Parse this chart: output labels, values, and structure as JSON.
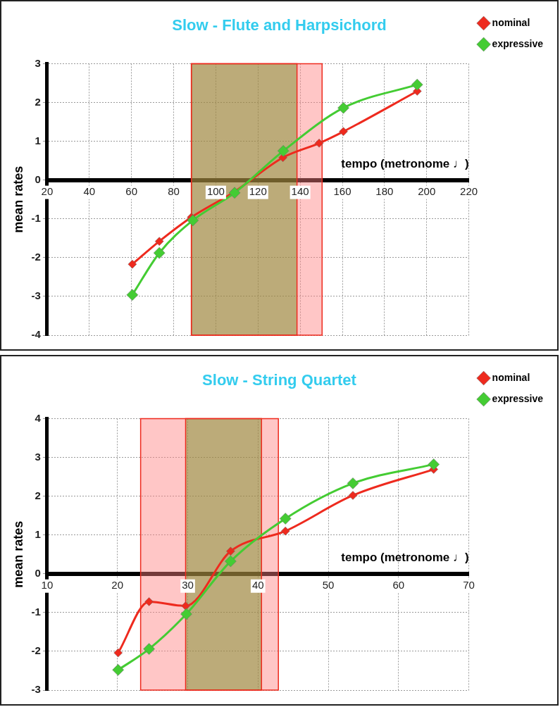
{
  "chart_data": [
    {
      "type": "line",
      "title": "Slow - Flute and Harpsichord",
      "xlabel": "tempo (metronome ♩)",
      "ylabel": "mean rates",
      "xlim": [
        20,
        220
      ],
      "xticks": [
        20,
        40,
        60,
        80,
        100,
        120,
        140,
        160,
        180,
        200,
        220
      ],
      "ylim": [
        -4,
        3
      ],
      "yticks": [
        -4,
        -3,
        -2,
        -1,
        0,
        1,
        2,
        3
      ],
      "grid": true,
      "legend": "top right",
      "marker": "diamond",
      "line_style": "solid",
      "series": [
        {
          "name": "nominal",
          "color": "#ee2a1e",
          "x": [
            60.4,
            73.2,
            88.4,
            108.9,
            131.8,
            149,
            160.5,
            195.5
          ],
          "values": [
            -2.17,
            -1.58,
            -0.96,
            -0.3,
            0.58,
            0.95,
            1.25,
            2.29
          ]
        },
        {
          "name": "expressive",
          "color": "#44cc33",
          "x": [
            60.4,
            73.2,
            89.1,
            108.9,
            132,
            160.5,
            195.5
          ],
          "values": [
            -2.96,
            -1.88,
            -1.04,
            -0.33,
            0.75,
            1.86,
            2.46
          ]
        }
      ],
      "bands": [
        {
          "axis": "x",
          "from": 88.4,
          "to": 150.4,
          "color": "#ff8080"
        },
        {
          "axis": "x",
          "from": 88.4,
          "to": 138.5,
          "color": "#6b8a1a"
        }
      ]
    },
    {
      "type": "line",
      "title": "Slow - String Quartet",
      "xlabel": "tempo (metronome ♩)",
      "ylabel": "mean rates",
      "xlim": [
        10,
        70
      ],
      "xticks": [
        10,
        20,
        30,
        40,
        50,
        60,
        70
      ],
      "ylim": [
        -3,
        4
      ],
      "yticks": [
        -3,
        -2,
        -1,
        0,
        1,
        2,
        3,
        4
      ],
      "grid": true,
      "legend": "top right",
      "marker": "diamond",
      "line_style": "solid",
      "series": [
        {
          "name": "nominal",
          "color": "#ee2a1e",
          "x": [
            20.1,
            24.5,
            29.7,
            36.1,
            43.9,
            53.5,
            65
          ],
          "values": [
            -2.04,
            -0.72,
            -0.83,
            0.58,
            1.1,
            2.02,
            2.69
          ]
        },
        {
          "name": "expressive",
          "color": "#44cc33",
          "x": [
            20.1,
            24.5,
            29.8,
            36.1,
            43.9,
            53.5,
            65
          ],
          "values": [
            -2.48,
            -1.94,
            -1.04,
            0.32,
            1.42,
            2.33,
            2.82
          ]
        }
      ],
      "bands": [
        {
          "axis": "x",
          "from": 23.3,
          "to": 42.9,
          "color": "#ff8080"
        },
        {
          "axis": "x",
          "from": 29.7,
          "to": 40.5,
          "color": "#6b8a1a"
        }
      ]
    }
  ]
}
